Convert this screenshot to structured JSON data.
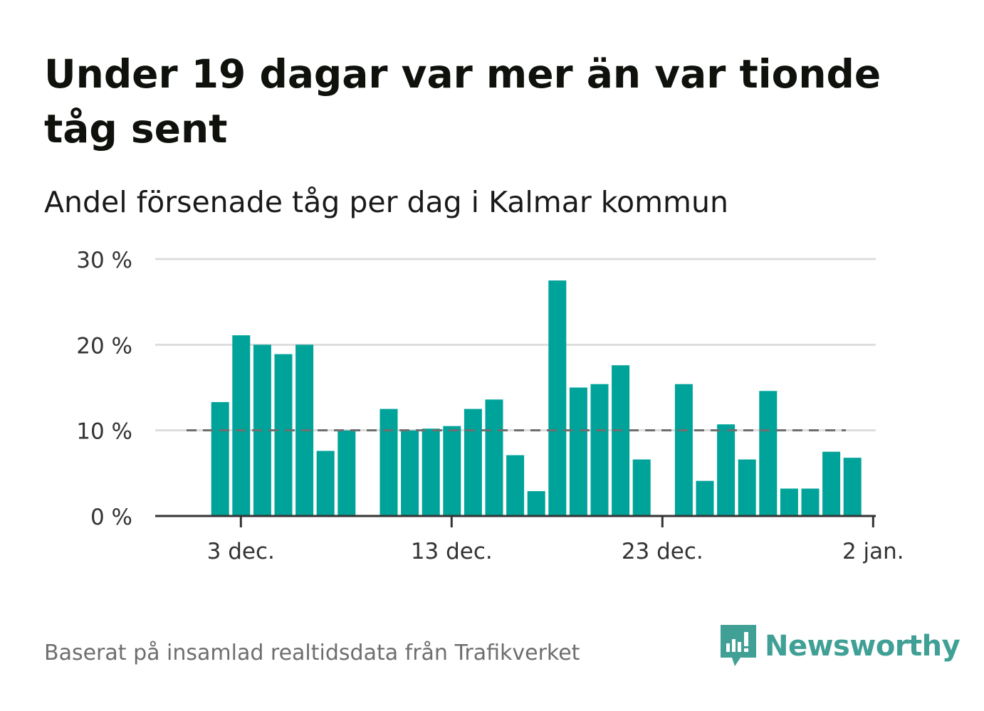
{
  "header": {
    "title": "Under 19 dagar var mer än var tionde tåg sent",
    "subtitle": "Andel försenade tåg per dag i Kalmar kommun"
  },
  "footer": {
    "source": "Baserat på insamlad realtidsdata från Trafikverket",
    "brand": "Newsworthy"
  },
  "colors": {
    "bar": "#00a39a",
    "reference_line": "#6e6e6e",
    "grid": "#dddddd",
    "axis": "#333333",
    "brand": "#41a096"
  },
  "chart_data": {
    "type": "bar",
    "x_start": "2023-11-30",
    "x_ticks": [
      "3 dec.",
      "13 dec.",
      "23 dec.",
      "2 jan."
    ],
    "x_tick_days": [
      3,
      13,
      23,
      33
    ],
    "y_ticks": [
      "0 %",
      "10 %",
      "20 %",
      "30 %"
    ],
    "y_tick_values": [
      0,
      10,
      20,
      30
    ],
    "ylim": [
      0,
      30
    ],
    "reference_line": 10,
    "grid": true,
    "days": [
      2,
      3,
      4,
      5,
      6,
      7,
      8,
      10,
      11,
      12,
      13,
      14,
      15,
      16,
      17,
      18,
      19,
      20,
      21,
      22,
      24,
      25,
      26,
      27,
      28,
      29,
      30,
      31,
      32
    ],
    "values": [
      13.3,
      21.1,
      20.0,
      18.9,
      20.0,
      7.6,
      10.0,
      12.5,
      10.0,
      10.2,
      10.5,
      12.5,
      13.6,
      7.1,
      2.9,
      27.5,
      15.0,
      15.4,
      17.6,
      6.6,
      15.4,
      4.1,
      10.7,
      6.6,
      14.6,
      3.2,
      3.2,
      7.5,
      6.8
    ]
  }
}
